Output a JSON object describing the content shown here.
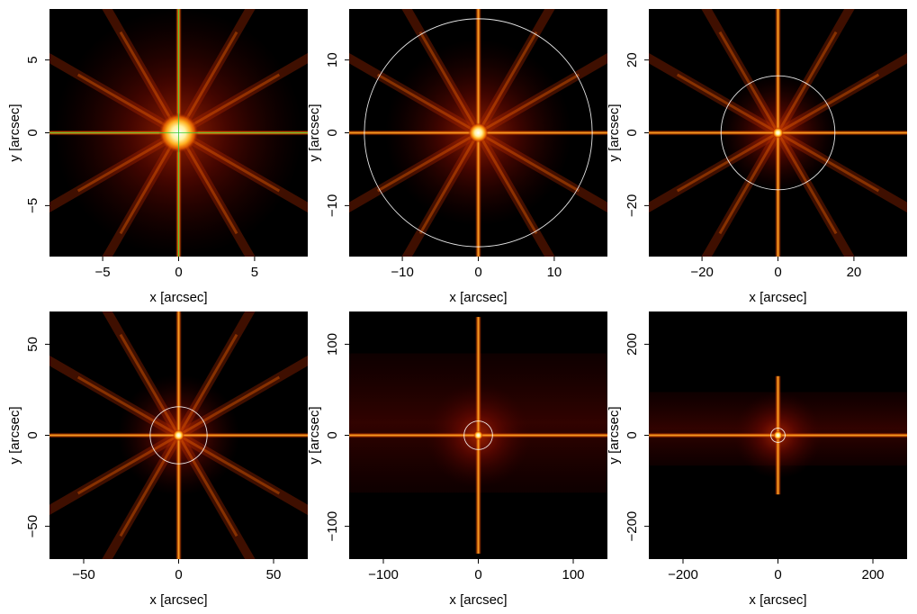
{
  "colors": {
    "background": "#000000",
    "colormap": [
      "#000000",
      "#3a0000",
      "#7a0a00",
      "#b52a00",
      "#e05a00",
      "#ff9a1a",
      "#ffd24a",
      "#ffffff"
    ],
    "circle": "#ffffff",
    "crosshair": "#33cc33"
  },
  "chart_data": [
    {
      "type": "heatmap",
      "description_of_content": "PSF image with diffraction spikes",
      "xlabel": "x [arcsec]",
      "ylabel": "y [arcsec]",
      "xlim": [
        -8.5,
        8.5
      ],
      "ylim": [
        -8.5,
        8.5
      ],
      "xticks": [
        -5,
        0,
        5
      ],
      "yticks": [
        -5,
        0,
        5
      ],
      "xticklabels": [
        "−5",
        "0",
        "5"
      ],
      "yticklabels": [
        "−5",
        "0",
        "5"
      ],
      "circle_radius": null,
      "crosshair": true,
      "core_radius": 1.1,
      "diagonal_spikes": true,
      "vertical_spike_extent": 8.5,
      "horizontal_spike_extent": 8.5,
      "band_half_height": null
    },
    {
      "type": "heatmap",
      "xlabel": "x [arcsec]",
      "ylabel": "y [arcsec]",
      "xlim": [
        -17,
        17
      ],
      "ylim": [
        -17,
        17
      ],
      "xticks": [
        -10,
        0,
        10
      ],
      "yticks": [
        -10,
        0,
        10
      ],
      "xticklabels": [
        "−10",
        "0",
        "10"
      ],
      "yticklabels": [
        "−10",
        "0",
        "10"
      ],
      "circle_radius": 15,
      "crosshair": false,
      "core_radius": 1.1,
      "diagonal_spikes": true,
      "vertical_spike_extent": 17,
      "horizontal_spike_extent": 17,
      "band_half_height": null
    },
    {
      "type": "heatmap",
      "xlabel": "x [arcsec]",
      "ylabel": "y [arcsec]",
      "xlim": [
        -34,
        34
      ],
      "ylim": [
        -34,
        34
      ],
      "xticks": [
        -20,
        0,
        20
      ],
      "yticks": [
        -20,
        0,
        20
      ],
      "xticklabels": [
        "−20",
        "0",
        "20"
      ],
      "yticklabels": [
        "−20",
        "0",
        "20"
      ],
      "circle_radius": 15,
      "crosshair": false,
      "core_radius": 1.2,
      "diagonal_spikes": true,
      "vertical_spike_extent": 34,
      "horizontal_spike_extent": 34,
      "band_half_height": null
    },
    {
      "type": "heatmap",
      "xlabel": "x [arcsec]",
      "ylabel": "y [arcsec]",
      "xlim": [
        -68,
        68
      ],
      "ylim": [
        -68,
        68
      ],
      "xticks": [
        -50,
        0,
        50
      ],
      "yticks": [
        -50,
        0,
        50
      ],
      "xticklabels": [
        "−50",
        "0",
        "50"
      ],
      "yticklabels": [
        "−50",
        "0",
        "50"
      ],
      "circle_radius": 15,
      "crosshair": false,
      "core_radius": 2.5,
      "diagonal_spikes": true,
      "vertical_spike_extent": 68,
      "horizontal_spike_extent": 68,
      "band_half_height": null
    },
    {
      "type": "heatmap",
      "xlabel": "x [arcsec]",
      "ylabel": "y [arcsec]",
      "xlim": [
        -136,
        136
      ],
      "ylim": [
        -136,
        136
      ],
      "xticks": [
        -100,
        0,
        100
      ],
      "yticks": [
        -100,
        0,
        100
      ],
      "xticklabels": [
        "−100",
        "0",
        "100"
      ],
      "yticklabels": [
        "−100",
        "0",
        "100"
      ],
      "circle_radius": 15,
      "crosshair": false,
      "core_radius": 4,
      "diagonal_spikes": false,
      "vertical_spike_extent": 130,
      "horizontal_spike_extent": 136,
      "band_half_height": 90
    },
    {
      "type": "heatmap",
      "xlabel": "x [arcsec]",
      "ylabel": "y [arcsec]",
      "xlim": [
        -272,
        272
      ],
      "ylim": [
        -272,
        272
      ],
      "xticks": [
        -200,
        0,
        200
      ],
      "yticks": [
        -200,
        0,
        200
      ],
      "xticklabels": [
        "−200",
        "0",
        "200"
      ],
      "yticklabels": [
        "−200",
        "0",
        "200"
      ],
      "circle_radius": 15,
      "crosshair": false,
      "core_radius": 6,
      "diagonal_spikes": false,
      "vertical_spike_extent": 130,
      "horizontal_spike_extent": 272,
      "band_half_height": 95
    }
  ]
}
